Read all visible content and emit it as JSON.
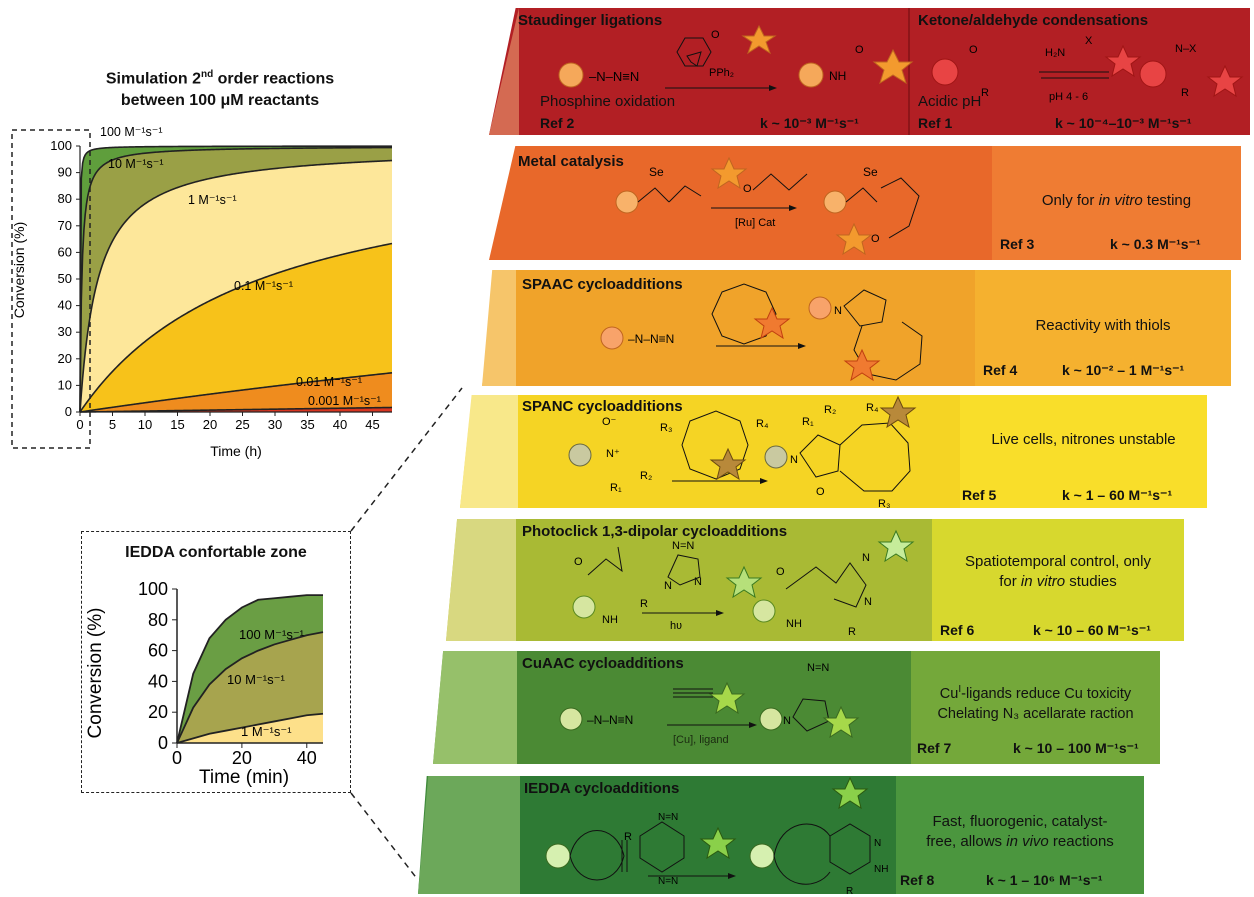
{
  "main_chart": {
    "title_1": "Simulation 2",
    "title_sup": "nd",
    "title_2": " order reactions",
    "title_3": "between 100 μM reactants",
    "xlabel": "Time (h)",
    "ylabel": "Conversion (%)",
    "xticks": [
      "0",
      "5",
      "10",
      "15",
      "20",
      "25",
      "30",
      "35",
      "40",
      "45"
    ],
    "yticks": [
      "0",
      "10",
      "20",
      "30",
      "40",
      "50",
      "60",
      "70",
      "80",
      "90",
      "100"
    ],
    "curve_labels": [
      "100 M⁻¹s⁻¹",
      "10 M⁻¹s⁻¹",
      "1 M⁻¹s⁻¹",
      "0.1 M⁻¹s⁻¹",
      "0.01 M⁻¹s⁻¹",
      "0.001 M⁻¹s⁻¹"
    ]
  },
  "inset_chart": {
    "title": "IEDDA confortable zone",
    "xlabel": "Time (min)",
    "ylabel": "Conversion (%)",
    "xticks": [
      "0",
      "20",
      "40"
    ],
    "yticks": [
      "0",
      "20",
      "40",
      "60",
      "80",
      "100"
    ],
    "curve_labels": [
      "100 M⁻¹s⁻¹",
      "10 M⁻¹s⁻¹",
      "1 M⁻¹s⁻¹"
    ]
  },
  "chart_data": [
    {
      "type": "area",
      "title": "Simulation 2nd order reactions between 100 μM reactants",
      "xlabel": "Time (h)",
      "ylabel": "Conversion (%)",
      "xlim": [
        0,
        48
      ],
      "ylim": [
        0,
        100
      ],
      "concentration_uM": 100,
      "series": [
        {
          "name": "100 M⁻¹s⁻¹",
          "k": 100
        },
        {
          "name": "10 M⁻¹s⁻¹",
          "k": 10
        },
        {
          "name": "1 M⁻¹s⁻¹",
          "k": 1
        },
        {
          "name": "0.1 M⁻¹s⁻¹",
          "k": 0.1
        },
        {
          "name": "0.01 M⁻¹s⁻¹",
          "k": 0.01
        },
        {
          "name": "0.001 M⁻¹s⁻¹",
          "k": 0.001
        }
      ]
    },
    {
      "type": "area",
      "title": "IEDDA confortable zone",
      "xlabel": "Time (min)",
      "ylabel": "Conversion (%)",
      "xlim": [
        0,
        45
      ],
      "ylim": [
        0,
        100
      ],
      "series": [
        {
          "name": "100 M⁻¹s⁻¹",
          "x": [
            0,
            5,
            10,
            15,
            20,
            25,
            30,
            35,
            40,
            45
          ],
          "values": [
            0,
            45,
            68,
            80,
            88,
            93,
            94,
            95,
            96,
            96
          ]
        },
        {
          "name": "10 M⁻¹s⁻¹",
          "x": [
            0,
            5,
            10,
            15,
            20,
            25,
            30,
            35,
            40,
            45
          ],
          "values": [
            0,
            23,
            38,
            48,
            55,
            60,
            64,
            67,
            70,
            72
          ]
        },
        {
          "name": "1 M⁻¹s⁻¹",
          "x": [
            0,
            5,
            10,
            15,
            20,
            25,
            30,
            35,
            40,
            45
          ],
          "values": [
            0,
            3,
            6,
            8,
            10,
            12,
            14,
            16,
            18,
            19
          ]
        }
      ]
    }
  ],
  "panels": [
    {
      "left_title": "Staudinger ligations",
      "left_note": "Phosphine oxidation",
      "left_ref": "Ref 2",
      "left_rate": "k ~ 10⁻³ M⁻¹s⁻¹",
      "reagent_label": "PPh₂",
      "right_title": "Ketone/aldehyde condensations",
      "right_note": "Acidic pH",
      "right_reagent": "H₂N",
      "right_condition": "pH 4 - 6",
      "right_ref": "Ref 1",
      "right_rate": "k ~ 10⁻⁴–10⁻³ M⁻¹s⁻¹",
      "color": "#b21f24"
    },
    {
      "title": "Metal catalysis",
      "condition": "[Ru] Cat",
      "note_plain_1": "Only for ",
      "note_italic": "in vitro",
      "note_plain_2": " testing",
      "ref": "Ref 3",
      "rate": "k ~ 0.3 M⁻¹s⁻¹",
      "color": "#e8682a"
    },
    {
      "title": "SPAAC cycloadditions",
      "note": "Reactivity with thiols",
      "ref": "Ref 4",
      "rate": "k ~ 10⁻² – 1 M⁻¹s⁻¹",
      "color": "#f0a32a"
    },
    {
      "title": "SPANC cycloadditions",
      "note": "Live cells, nitrones unstable",
      "ref": "Ref 5",
      "rate": "k ~ 1 – 60 M⁻¹s⁻¹",
      "color": "#f5d424"
    },
    {
      "title": "Photoclick 1,3-dipolar cycloadditions",
      "condition": "hʋ",
      "note_line1": "Spatiotemporal control, only",
      "note_line2_plain": "for ",
      "note_line2_italic": "in vitro",
      "note_line2_end": " studies",
      "ref": "Ref 6",
      "rate": "k ~ 10 – 60 M⁻¹s⁻¹",
      "color": "#c6c430"
    },
    {
      "title": "CuAAC cycloadditions",
      "condition": "[Cu], ligand",
      "note_line1_a": "Cu",
      "note_line1_sup": "I",
      "note_line1_b": "-ligands reduce Cu toxicity",
      "note_line2": "Chelating N₃ acellarate raction",
      "ref": "Ref 7",
      "rate": "k ~ 10 – 100 M⁻¹s⁻¹",
      "color": "#5e9a3a"
    },
    {
      "title": "IEDDA cycloadditions",
      "note_line1": "Fast, fluorogenic, catalyst-",
      "note_line2_plain": "free, allows ",
      "note_line2_italic": "in vivo",
      "note_line2_end": " reactions",
      "ref": "Ref 8",
      "rate": "k ~ 1 – 10⁶ M⁻¹s⁻¹",
      "color": "#3f8a3a"
    }
  ]
}
